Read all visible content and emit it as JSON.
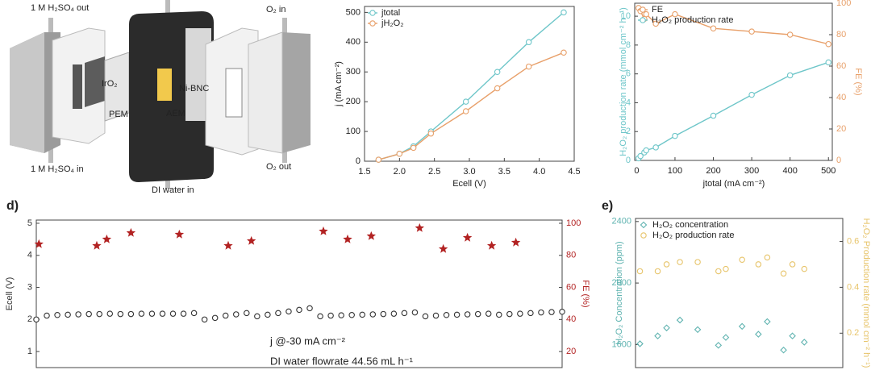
{
  "diagram": {
    "labels": [
      "1 M H₂SO₄ out",
      "O₂ in",
      "IrO₂",
      "PEM",
      "AEM",
      "Ni-BNC",
      "1 M H₂SO₄ in",
      "O₂ out",
      "DI water in"
    ]
  },
  "chart_data": [
    {
      "type": "line",
      "x_label": "Ecell (V)",
      "y_label": "j (mA cm⁻²)",
      "xlim": [
        1.5,
        4.5
      ],
      "xticks": [
        1.5,
        {
          "value": 2,
          "label": "2.0"
        },
        2.5,
        {
          "value": 3,
          "label": "3.0"
        },
        3.5,
        {
          "value": 4,
          "label": "4.0"
        },
        4.5
      ],
      "ylim": [
        0,
        520
      ],
      "yticks": [
        0,
        100,
        200,
        300,
        400,
        500
      ],
      "legend": "upper left",
      "grid": false,
      "series": [
        {
          "name": "jtotal",
          "color": "#6ec6c9",
          "marker": "circle",
          "line": true,
          "x": [
            1.7,
            2.0,
            2.2,
            2.45,
            2.95,
            3.4,
            3.85,
            4.35
          ],
          "values": [
            5,
            25,
            50,
            100,
            200,
            300,
            400,
            500
          ]
        },
        {
          "name": "jH₂O₂",
          "color": "#e8a06a",
          "marker": "circle",
          "line": true,
          "x": [
            1.7,
            2.0,
            2.2,
            2.45,
            2.95,
            3.4,
            3.85,
            4.35
          ],
          "values": [
            5,
            25,
            45,
            93,
            168,
            245,
            318,
            365
          ]
        }
      ]
    },
    {
      "type": "line",
      "x_label": "jtotal (mA cm⁻²)",
      "y_label": "H₂O₂ production rate (mmol cm⁻² h⁻¹)",
      "y2_label": "FE (%)",
      "xlim": [
        -5,
        510
      ],
      "xticks": [
        0,
        100,
        200,
        300,
        400,
        500
      ],
      "ylim": [
        0,
        10.9
      ],
      "yticks": [
        0,
        2,
        4,
        6,
        8,
        10
      ],
      "y2lim": [
        0,
        100
      ],
      "y2ticks": [
        0,
        20,
        40,
        60,
        80,
        100
      ],
      "legend": "upper left",
      "grid": false,
      "series": [
        {
          "name": "FE",
          "color": "#e8a06a",
          "marker": "circle",
          "line": true,
          "axis": "y2",
          "x": [
            5,
            10,
            20,
            25,
            50,
            100,
            200,
            300,
            400,
            500
          ],
          "values": [
            97,
            95,
            90,
            93,
            87,
            93,
            84,
            82,
            80,
            74
          ]
        },
        {
          "name": "H₂O₂ production rate",
          "color": "#6ec6c9",
          "marker": "circle",
          "line": true,
          "x": [
            5,
            10,
            20,
            25,
            50,
            100,
            200,
            300,
            400,
            500
          ],
          "values": [
            0.15,
            0.3,
            0.55,
            0.7,
            0.9,
            1.7,
            3.1,
            4.55,
            5.9,
            6.8
          ]
        }
      ]
    },
    {
      "type": "scatter",
      "panel_label": "d)",
      "y_label": "Ecell (V)",
      "y2_label": "FE (%)",
      "annotations": [
        "j @-30 mA cm⁻²",
        "DI water flowrate 44.56 mL h⁻¹"
      ],
      "xlim": [
        0,
        100
      ],
      "ylim": [
        0.5,
        5.1
      ],
      "yticks": [
        1,
        2,
        3,
        4,
        5
      ],
      "y2lim": [
        10,
        102
      ],
      "y2ticks": [
        20,
        40,
        60,
        80,
        100
      ],
      "grid": false,
      "series": [
        {
          "color": "#333333",
          "marker": "circle",
          "line": false,
          "x": [
            0,
            2,
            4,
            6,
            8,
            10,
            12,
            14,
            16,
            18,
            20,
            22,
            24,
            26,
            28,
            30,
            32,
            34,
            36,
            38,
            40,
            42,
            44,
            46,
            48,
            50,
            52,
            54,
            56,
            58,
            60,
            62,
            64,
            66,
            68,
            70,
            72,
            74,
            76,
            78,
            80,
            82,
            84,
            86,
            88,
            90,
            92,
            94,
            96,
            98,
            100
          ],
          "values": [
            2.0,
            2.12,
            2.14,
            2.15,
            2.16,
            2.17,
            2.17,
            2.18,
            2.17,
            2.17,
            2.18,
            2.18,
            2.18,
            2.18,
            2.18,
            2.2,
            2.0,
            2.05,
            2.12,
            2.16,
            2.2,
            2.1,
            2.15,
            2.2,
            2.25,
            2.3,
            2.35,
            2.1,
            2.12,
            2.13,
            2.14,
            2.15,
            2.16,
            2.17,
            2.18,
            2.2,
            2.22,
            2.1,
            2.12,
            2.14,
            2.15,
            2.16,
            2.17,
            2.18,
            2.15,
            2.17,
            2.18,
            2.2,
            2.22,
            2.23,
            2.24
          ]
        },
        {
          "color": "#b22222",
          "marker": "star",
          "line": false,
          "axis": "y2",
          "x": [
            0.5,
            11.5,
            13.4,
            18,
            27.2,
            36.5,
            40.9,
            54.6,
            59.2,
            63.7,
            72.9,
            77.4,
            82,
            86.6,
            91.2
          ],
          "values": [
            87,
            86,
            90,
            94,
            93,
            86,
            89,
            95,
            90,
            92,
            97,
            84,
            91,
            86,
            88
          ]
        }
      ]
    },
    {
      "type": "scatter",
      "panel_label": "e)",
      "y_label": "H₂O₂ Concentration (ppm)",
      "y2_label": "H₂O₂ Production rate (mmol cm⁻² h⁻¹)",
      "xlim": [
        0,
        14
      ],
      "ylim": [
        1450,
        2420
      ],
      "yticks": [
        1600,
        2000,
        2400
      ],
      "y2lim": [
        0.05,
        0.7
      ],
      "y2ticks": [
        0.2,
        0.4,
        0.6
      ],
      "legend": "upper left",
      "grid": false,
      "series": [
        {
          "name": "H₂O₂ concentration",
          "color": "#5fb3b0",
          "marker": "diamond",
          "line": false,
          "x": [
            0.3,
            1.5,
            2.1,
            3.0,
            4.2,
            5.6,
            6.1,
            7.2,
            8.3,
            8.9,
            10.0,
            10.6,
            11.4
          ],
          "values": [
            1605,
            1656,
            1708,
            1759,
            1697,
            1595,
            1646,
            1718,
            1667,
            1749,
            1564,
            1656,
            1615
          ]
        },
        {
          "name": "H₂O₂ production rate",
          "color": "#e7c46a",
          "marker": "circle",
          "line": false,
          "axis": "y2",
          "x": [
            0.3,
            1.5,
            2.1,
            3.0,
            4.2,
            5.6,
            6.1,
            7.2,
            8.3,
            8.9,
            10.0,
            10.6,
            11.4
          ],
          "values": [
            0.47,
            0.47,
            0.5,
            0.51,
            0.51,
            0.47,
            0.48,
            0.52,
            0.5,
            0.53,
            0.46,
            0.5,
            0.48
          ]
        }
      ]
    }
  ]
}
